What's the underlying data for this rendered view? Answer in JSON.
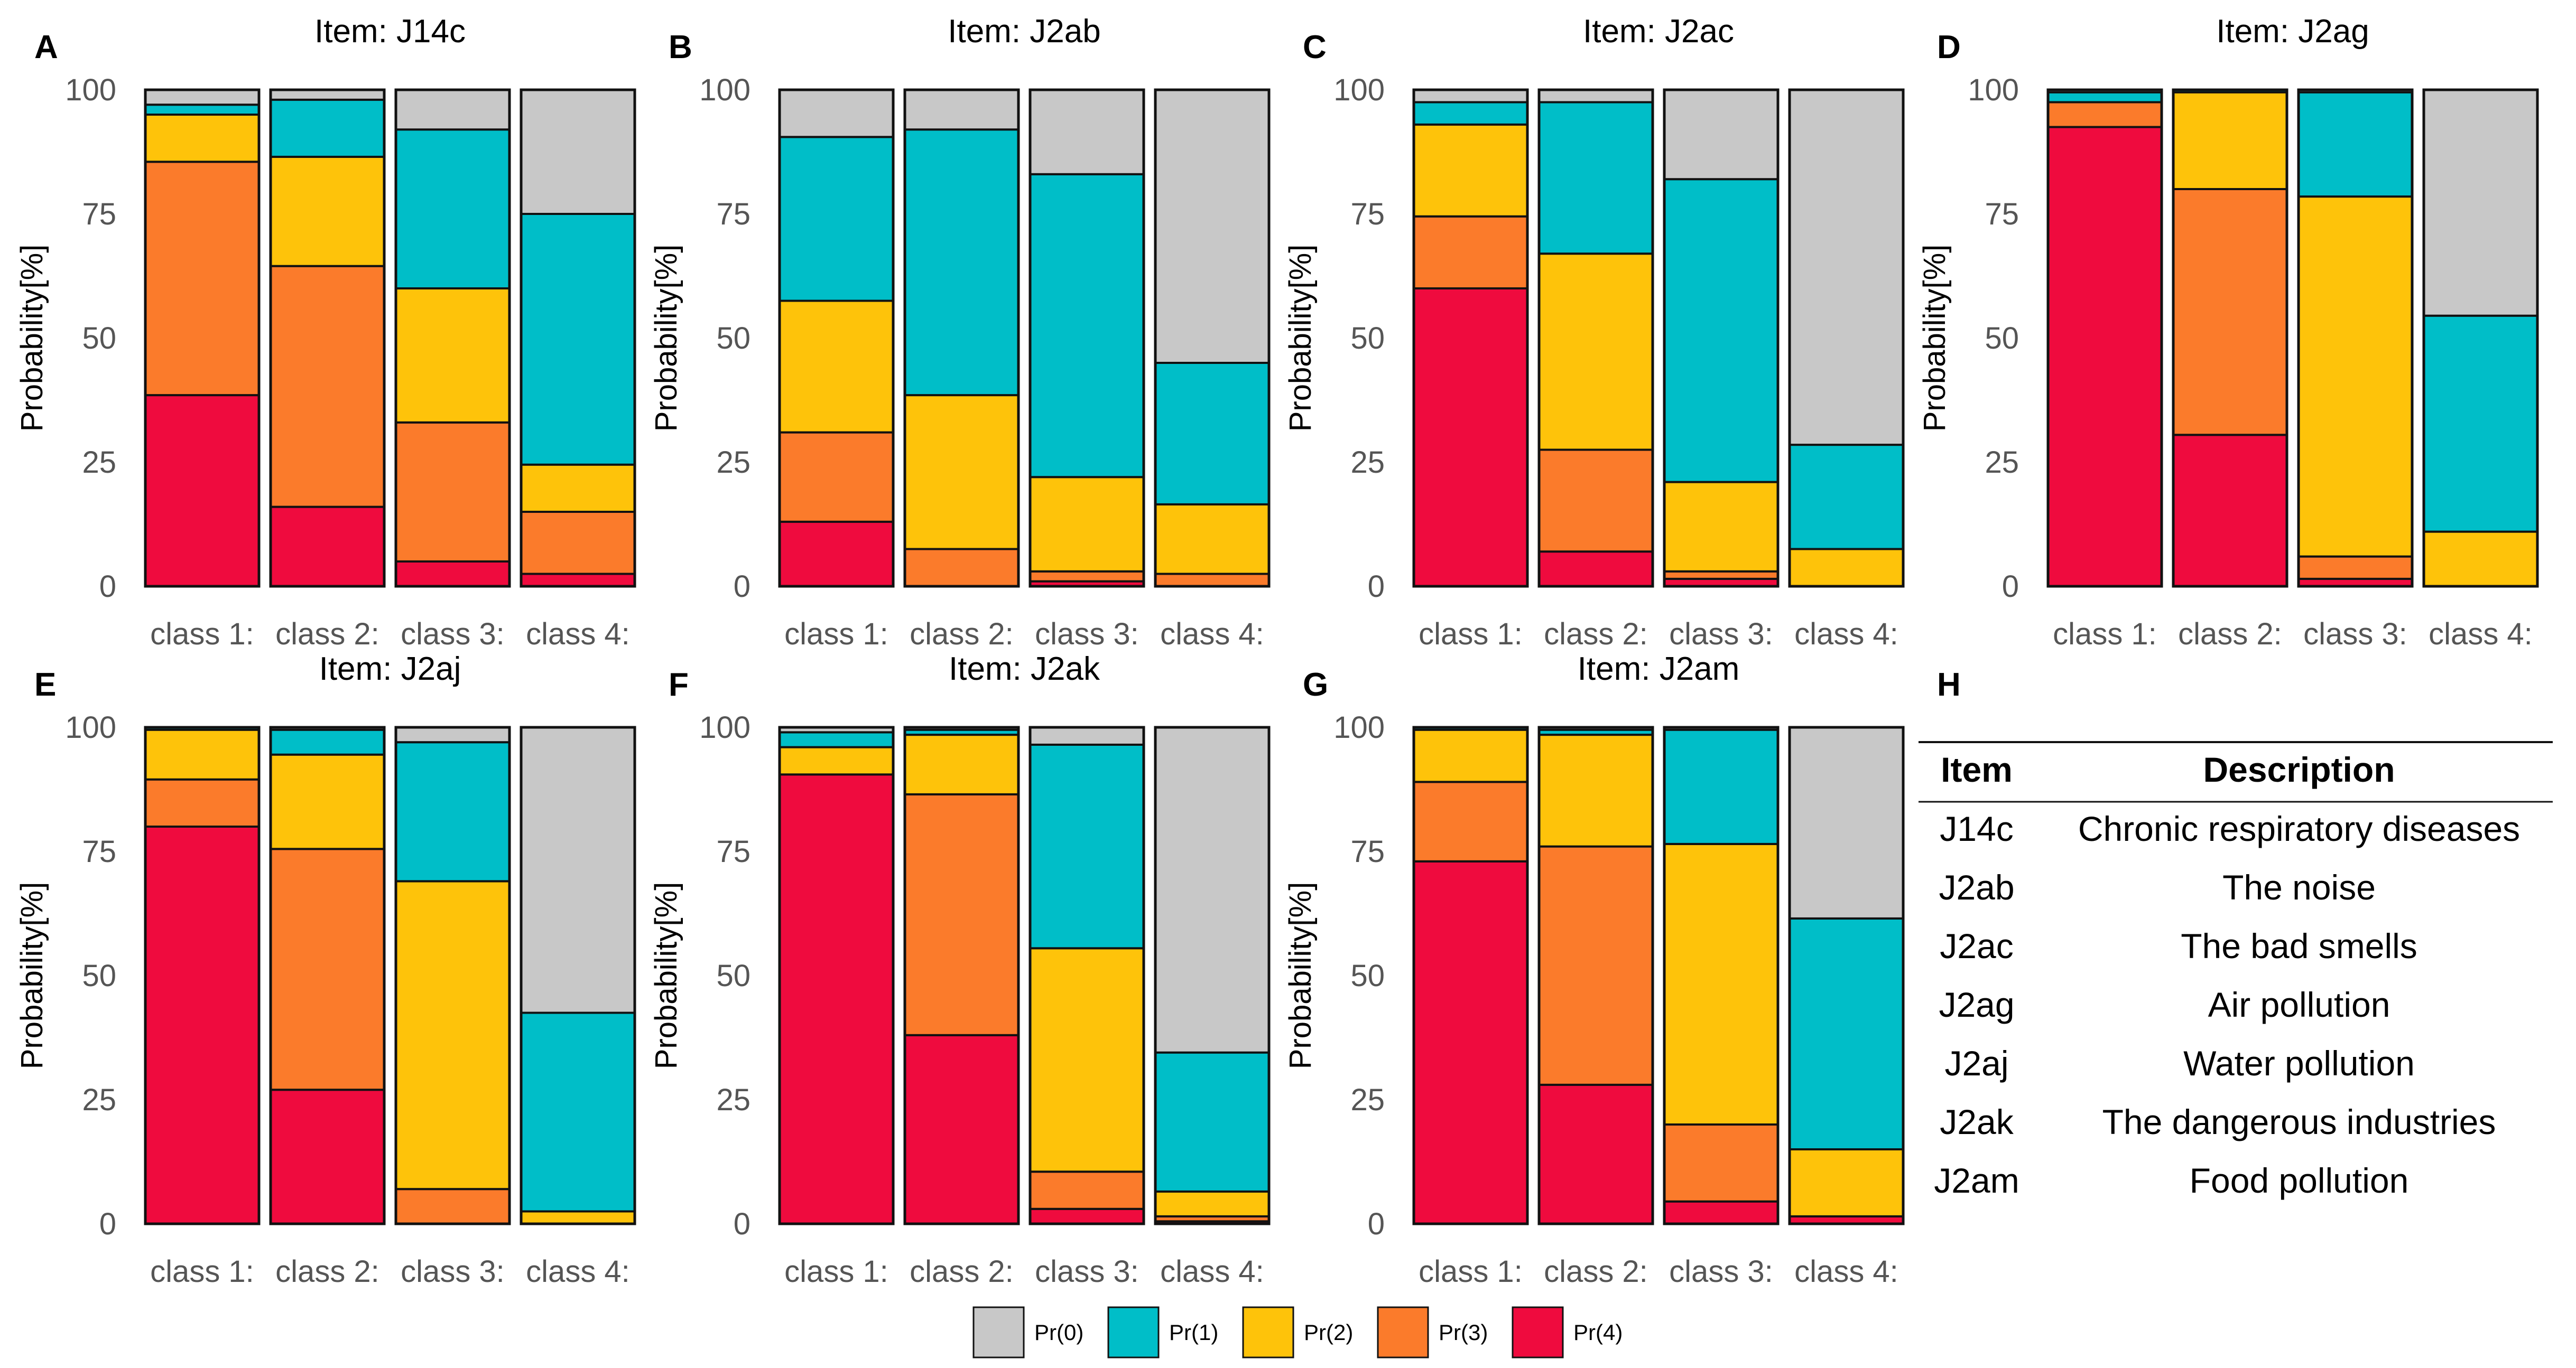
{
  "figure": {
    "ylabel": "Probability[%]",
    "categories": [
      "class 1:",
      "class 2:",
      "class 3:",
      "class 4:"
    ],
    "yticks": [
      "0",
      "25",
      "50",
      "75",
      "100"
    ]
  },
  "legend": [
    {
      "label": "Pr(0)",
      "color": "#c8c8c8"
    },
    {
      "label": "Pr(1)",
      "color": "#00bec8"
    },
    {
      "label": "Pr(2)",
      "color": "#fec30a"
    },
    {
      "label": "Pr(3)",
      "color": "#fb7b2b"
    },
    {
      "label": "Pr(4)",
      "color": "#ef0b3e"
    }
  ],
  "chart_data": [
    {
      "panel": "A",
      "type": "bar",
      "stacked": true,
      "title": "Item: J14c",
      "ylabel": "Probability[%]",
      "ylim": [
        0,
        100
      ],
      "categories": [
        "class 1:",
        "class 2:",
        "class 3:",
        "class 4:"
      ],
      "series": [
        {
          "name": "Pr(4)",
          "values": [
            38.5,
            16,
            5,
            2.5
          ]
        },
        {
          "name": "Pr(3)",
          "values": [
            47,
            48.5,
            28,
            12.5
          ]
        },
        {
          "name": "Pr(2)",
          "values": [
            9.5,
            22,
            27,
            9.5
          ]
        },
        {
          "name": "Pr(1)",
          "values": [
            2,
            11.5,
            32,
            50.5
          ]
        },
        {
          "name": "Pr(0)",
          "values": [
            3,
            2,
            8,
            25
          ]
        }
      ]
    },
    {
      "panel": "B",
      "type": "bar",
      "stacked": true,
      "title": "Item: J2ab",
      "ylabel": "Probability[%]",
      "ylim": [
        0,
        100
      ],
      "categories": [
        "class 1:",
        "class 2:",
        "class 3:",
        "class 4:"
      ],
      "series": [
        {
          "name": "Pr(4)",
          "values": [
            13,
            0,
            1,
            0
          ]
        },
        {
          "name": "Pr(3)",
          "values": [
            18,
            7.5,
            2,
            2.5
          ]
        },
        {
          "name": "Pr(2)",
          "values": [
            26.5,
            31,
            19,
            14
          ]
        },
        {
          "name": "Pr(1)",
          "values": [
            33,
            53.5,
            61,
            28.5
          ]
        },
        {
          "name": "Pr(0)",
          "values": [
            9.5,
            8,
            17,
            55
          ]
        }
      ]
    },
    {
      "panel": "C",
      "type": "bar",
      "stacked": true,
      "title": "Item: J2ac",
      "ylabel": "Probability[%]",
      "ylim": [
        0,
        100
      ],
      "categories": [
        "class 1:",
        "class 2:",
        "class 3:",
        "class 4:"
      ],
      "series": [
        {
          "name": "Pr(4)",
          "values": [
            60,
            7,
            1.5,
            0
          ]
        },
        {
          "name": "Pr(3)",
          "values": [
            14.5,
            20.5,
            1.5,
            0
          ]
        },
        {
          "name": "Pr(2)",
          "values": [
            18.5,
            39.5,
            18,
            7.5
          ]
        },
        {
          "name": "Pr(1)",
          "values": [
            4.5,
            30.5,
            61,
            21
          ]
        },
        {
          "name": "Pr(0)",
          "values": [
            2.5,
            2.5,
            18,
            71.5
          ]
        }
      ]
    },
    {
      "panel": "D",
      "type": "bar",
      "stacked": true,
      "title": "Item: J2ag",
      "ylabel": "Probability[%]",
      "ylim": [
        0,
        100
      ],
      "categories": [
        "class 1:",
        "class 2:",
        "class 3:",
        "class 4:"
      ],
      "series": [
        {
          "name": "Pr(4)",
          "values": [
            92.5,
            30.5,
            1.5,
            0
          ]
        },
        {
          "name": "Pr(3)",
          "values": [
            5,
            49.5,
            4.5,
            0
          ]
        },
        {
          "name": "Pr(2)",
          "values": [
            0,
            19.5,
            72.5,
            11
          ]
        },
        {
          "name": "Pr(1)",
          "values": [
            2,
            0.5,
            21,
            43.5
          ]
        },
        {
          "name": "Pr(0)",
          "values": [
            0.5,
            0,
            0.5,
            45.5
          ]
        }
      ]
    },
    {
      "panel": "E",
      "type": "bar",
      "stacked": true,
      "title": "Item: J2aj",
      "ylabel": "Probability[%]",
      "ylim": [
        0,
        100
      ],
      "categories": [
        "class 1:",
        "class 2:",
        "class 3:",
        "class 4:"
      ],
      "series": [
        {
          "name": "Pr(4)",
          "values": [
            80,
            27,
            0,
            0
          ]
        },
        {
          "name": "Pr(3)",
          "values": [
            9.5,
            48.5,
            7,
            0
          ]
        },
        {
          "name": "Pr(2)",
          "values": [
            10,
            19,
            62,
            2.5
          ]
        },
        {
          "name": "Pr(1)",
          "values": [
            0.5,
            5,
            28,
            40
          ]
        },
        {
          "name": "Pr(0)",
          "values": [
            0,
            0.5,
            3,
            57.5
          ]
        }
      ]
    },
    {
      "panel": "F",
      "type": "bar",
      "stacked": true,
      "title": "Item: J2ak",
      "ylabel": "Probability[%]",
      "ylim": [
        0,
        100
      ],
      "categories": [
        "class 1:",
        "class 2:",
        "class 3:",
        "class 4:"
      ],
      "series": [
        {
          "name": "Pr(4)",
          "values": [
            90.5,
            38,
            3,
            0.5
          ]
        },
        {
          "name": "Pr(3)",
          "values": [
            0,
            48.5,
            7.5,
            1
          ]
        },
        {
          "name": "Pr(2)",
          "values": [
            5.5,
            12,
            45,
            5
          ]
        },
        {
          "name": "Pr(1)",
          "values": [
            3,
            1,
            41,
            28
          ]
        },
        {
          "name": "Pr(0)",
          "values": [
            1,
            0.5,
            3.5,
            65.5
          ]
        }
      ]
    },
    {
      "panel": "G",
      "type": "bar",
      "stacked": true,
      "title": "Item: J2am",
      "ylabel": "Probability[%]",
      "ylim": [
        0,
        100
      ],
      "categories": [
        "class 1:",
        "class 2:",
        "class 3:",
        "class 4:"
      ],
      "series": [
        {
          "name": "Pr(4)",
          "values": [
            73,
            28,
            4.5,
            1.5
          ]
        },
        {
          "name": "Pr(3)",
          "values": [
            16,
            48,
            15.5,
            0
          ]
        },
        {
          "name": "Pr(2)",
          "values": [
            10.5,
            22.5,
            56.5,
            13.5
          ]
        },
        {
          "name": "Pr(1)",
          "values": [
            0.5,
            1,
            23,
            46.5
          ]
        },
        {
          "name": "Pr(0)",
          "values": [
            0,
            0.5,
            0.5,
            38.5
          ]
        }
      ]
    }
  ],
  "table": {
    "panel": "H",
    "headers": [
      "Item",
      "Description"
    ],
    "rows": [
      [
        "J14c",
        "Chronic respiratory diseases"
      ],
      [
        "J2ab",
        "The noise"
      ],
      [
        "J2ac",
        "The bad smells"
      ],
      [
        "J2ag",
        "Air pollution"
      ],
      [
        "J2aj",
        "Water pollution"
      ],
      [
        "J2ak",
        "The dangerous industries"
      ],
      [
        "J2am",
        "Food pollution"
      ]
    ]
  }
}
